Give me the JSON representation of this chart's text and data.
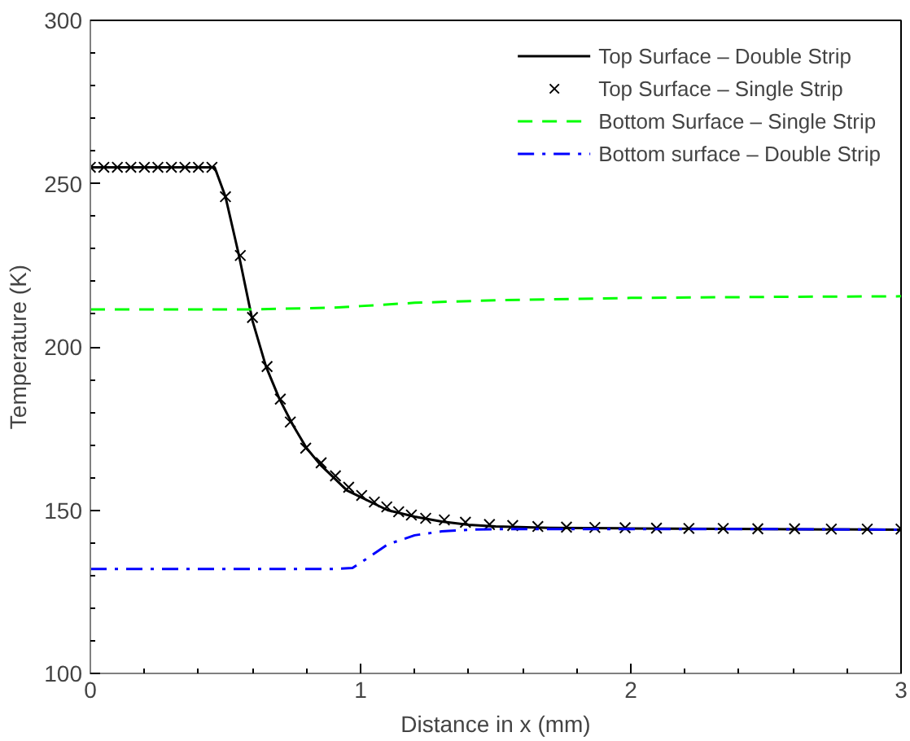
{
  "chart_data": {
    "type": "line",
    "xlabel": "Distance in x (mm)",
    "ylabel": "Temperature (K)",
    "xlim": [
      0,
      3
    ],
    "ylim": [
      100,
      300
    ],
    "xticks": [
      0,
      1,
      2,
      3
    ],
    "yticks": [
      100,
      150,
      200,
      250,
      300
    ],
    "grid": false,
    "legend": "top right",
    "series": [
      {
        "name": "Top Surface – Double Strip",
        "color": "#000000",
        "line_style": "solid",
        "marker": "none",
        "x": [
          0,
          0.1,
          0.2,
          0.3,
          0.4,
          0.46,
          0.5,
          0.55,
          0.6,
          0.65,
          0.7,
          0.75,
          0.8,
          0.85,
          0.9,
          0.95,
          1.0,
          1.05,
          1.1,
          1.2,
          1.3,
          1.4,
          1.5,
          1.7,
          2.0,
          2.5,
          3.0
        ],
        "values": [
          255,
          255,
          255,
          255,
          255,
          255,
          246,
          228,
          208,
          194,
          184,
          176,
          169,
          164,
          160,
          156,
          154,
          152,
          150,
          148,
          146.5,
          145.5,
          145,
          144.6,
          144.4,
          144.2,
          144
        ]
      },
      {
        "name": "Top Surface – Single Strip",
        "color": "#000000",
        "type": "scatter",
        "marker": "cross",
        "x": [
          0,
          0.05,
          0.1,
          0.15,
          0.2,
          0.25,
          0.3,
          0.35,
          0.4,
          0.45,
          0.5,
          0.555,
          0.6,
          0.654,
          0.703,
          0.74,
          0.797,
          0.854,
          0.907,
          0.956,
          1.004,
          1.051,
          1.097,
          1.141,
          1.188,
          1.241,
          1.31,
          1.388,
          1.477,
          1.563,
          1.656,
          1.762,
          1.867,
          1.979,
          2.095,
          2.215,
          2.342,
          2.47,
          2.606,
          2.742,
          2.875,
          3.0
        ],
        "values": [
          255,
          255,
          255,
          255,
          255,
          255,
          255,
          255,
          255,
          255,
          246,
          228,
          209,
          194,
          184,
          177,
          169,
          164.5,
          160.5,
          157,
          154.5,
          152.5,
          151,
          149.5,
          148.5,
          147.5,
          147,
          146.3,
          145.6,
          145.3,
          145,
          144.8,
          144.7,
          144.6,
          144.5,
          144.4,
          144.4,
          144.3,
          144.3,
          144.2,
          144.2,
          144.2
        ]
      },
      {
        "name": "Bottom Surface – Single Strip",
        "color": "#00ff00",
        "line_style": "dashed",
        "marker": "none",
        "x": [
          0,
          0.3,
          0.6,
          0.9,
          1.0,
          1.2,
          1.5,
          2.0,
          2.5,
          3.0
        ],
        "values": [
          211.5,
          211.5,
          211.5,
          212,
          212.5,
          213.5,
          214.3,
          215,
          215.3,
          215.5
        ]
      },
      {
        "name": "Bottom surface – Double Strip",
        "color": "#0000ff",
        "line_style": "dashdot",
        "marker": "none",
        "x": [
          0,
          0.3,
          0.6,
          0.9,
          0.97,
          1.02,
          1.1,
          1.2,
          1.3,
          1.4,
          1.5,
          2.0,
          2.5,
          3.0
        ],
        "values": [
          132,
          132,
          132,
          132,
          132.3,
          135,
          139.5,
          142.3,
          143.5,
          144,
          144.2,
          144.2,
          144.2,
          144
        ]
      }
    ]
  }
}
